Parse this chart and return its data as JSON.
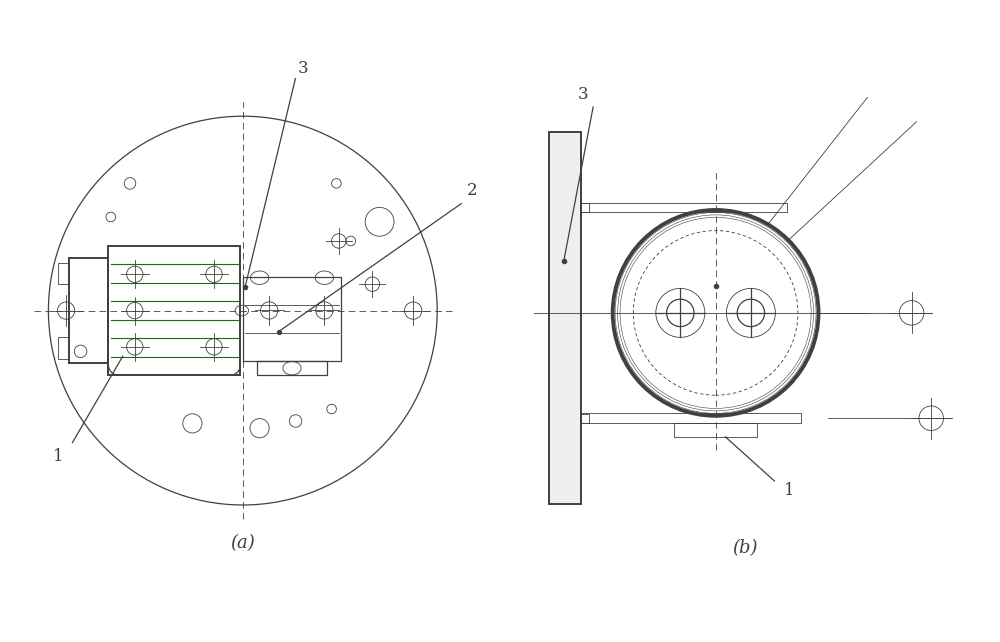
{
  "fig_width": 10.0,
  "fig_height": 6.42,
  "bg_color": "#ffffff",
  "lc": "#404040",
  "gc": "#1a6b1a",
  "label_a": "(a)",
  "label_b": "(b)"
}
